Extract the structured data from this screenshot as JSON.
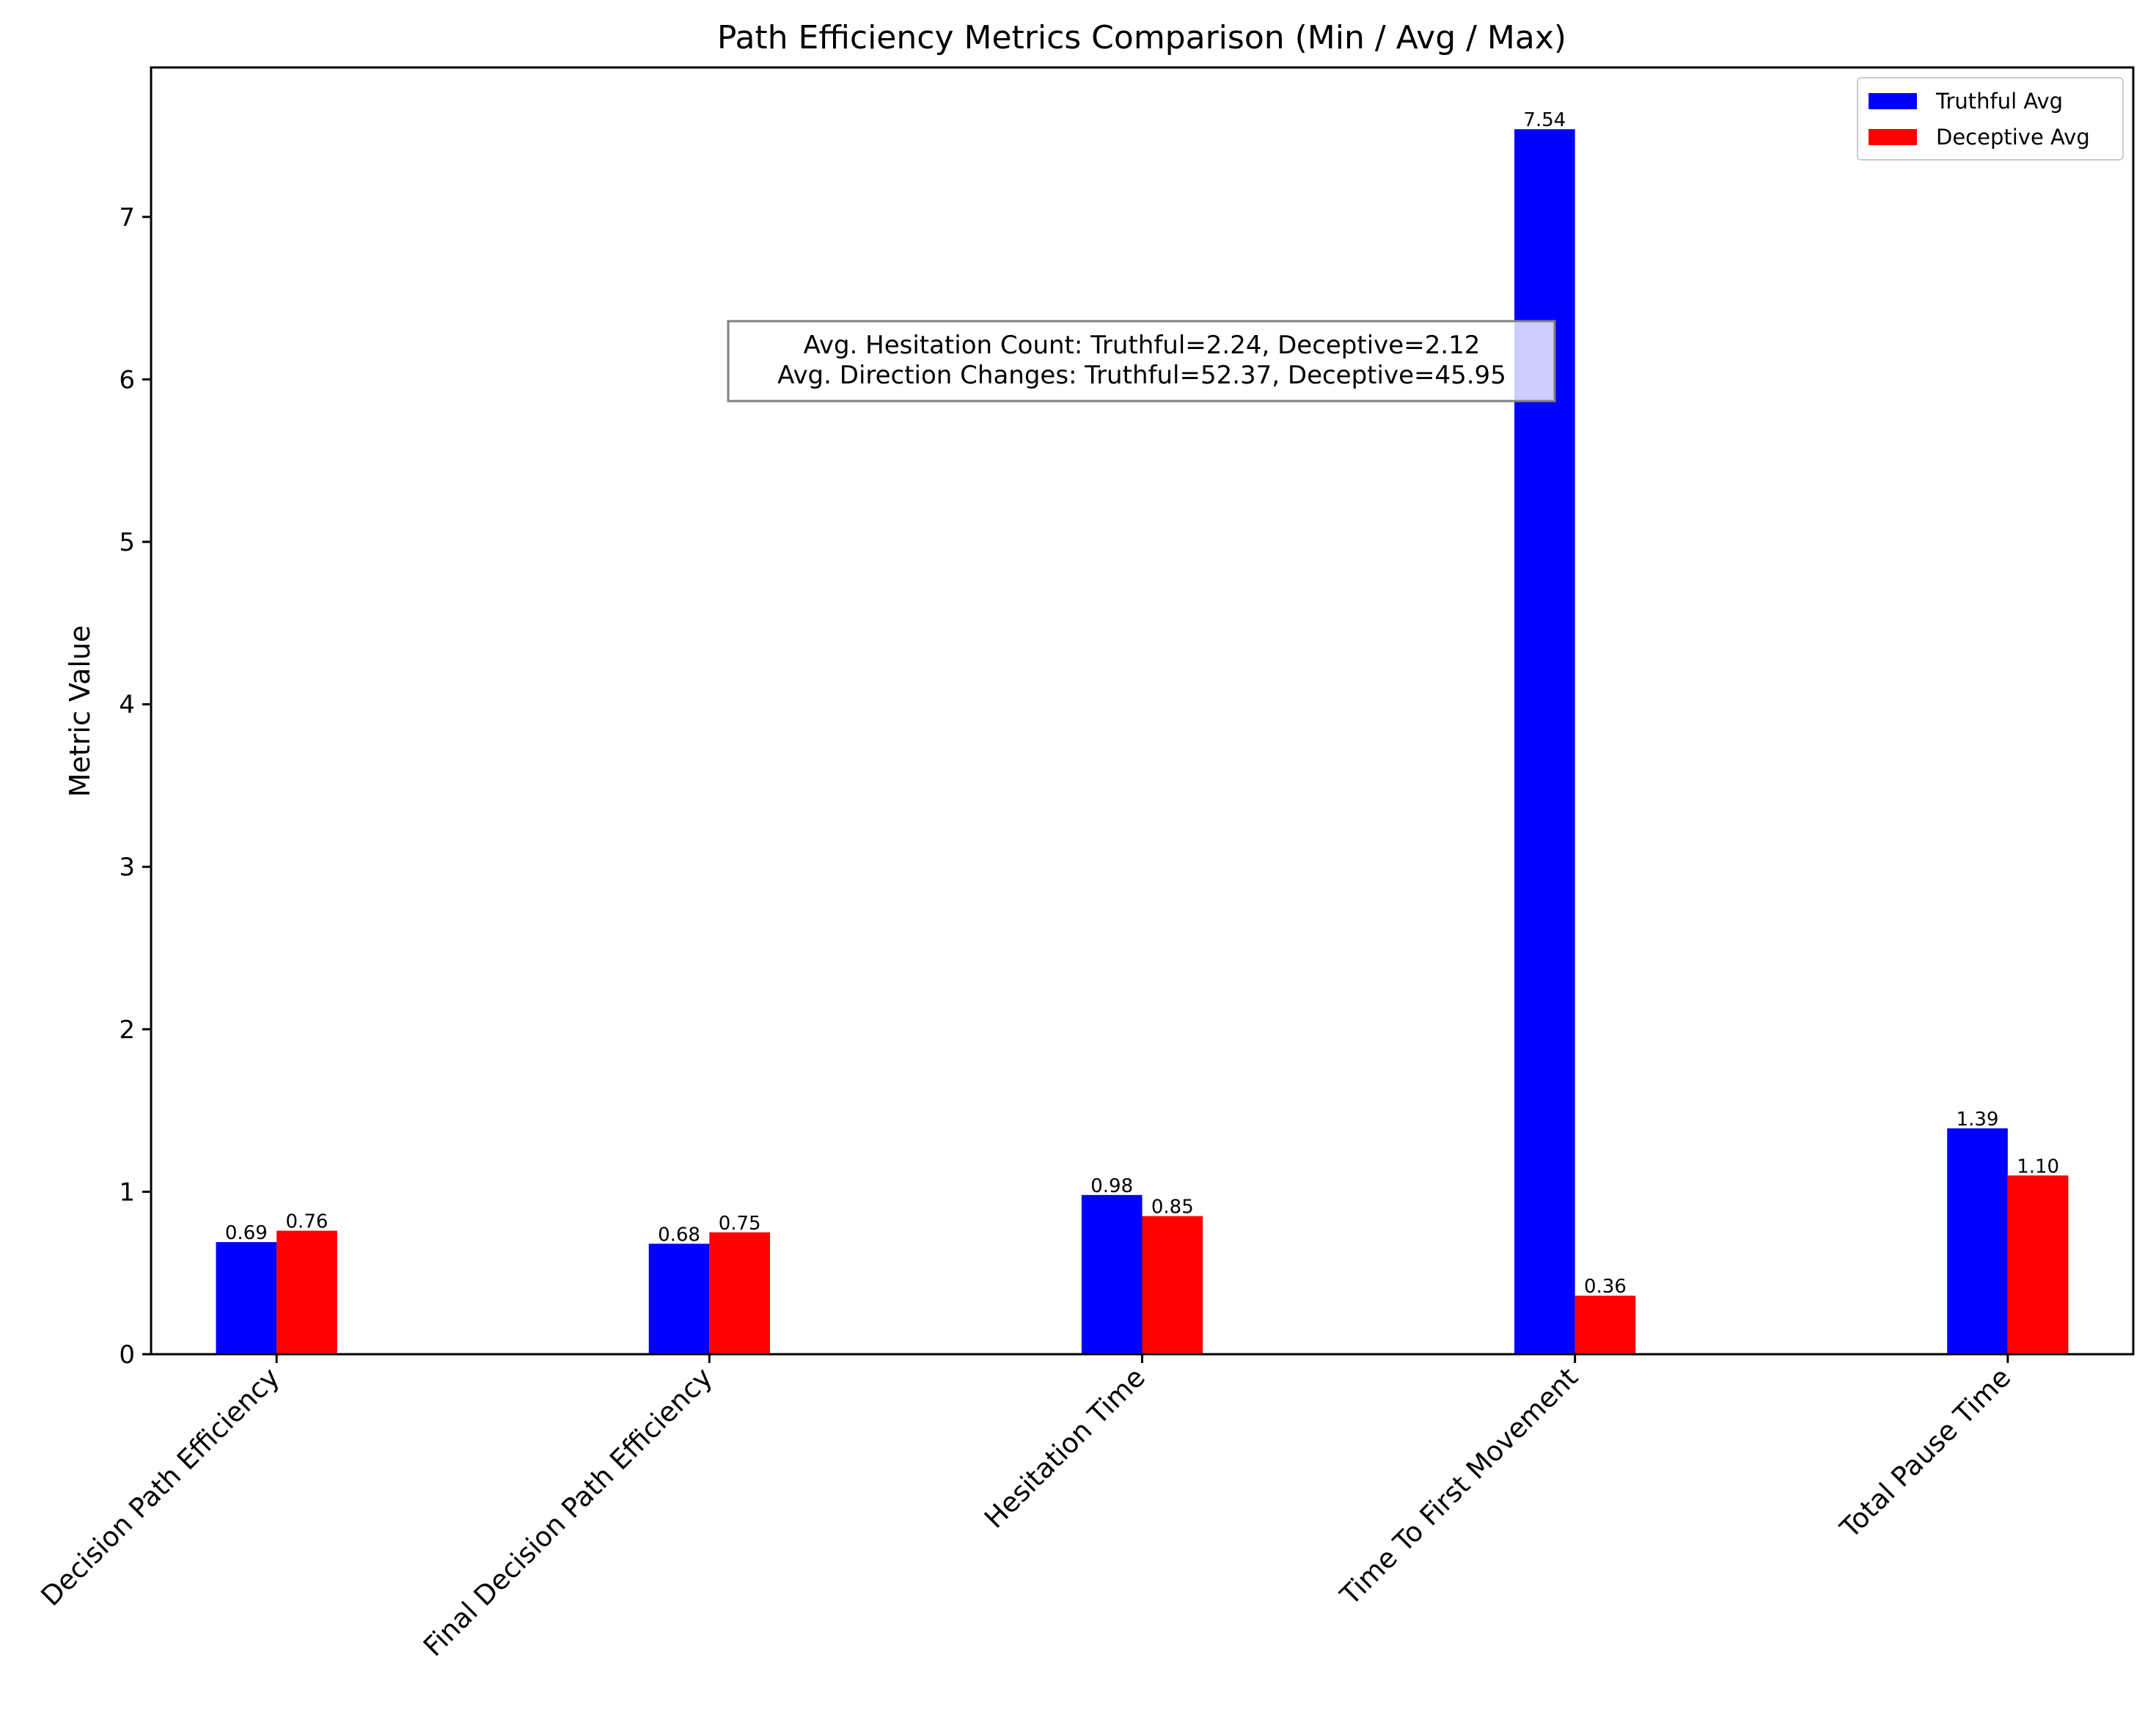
{
  "chart_data": {
    "type": "bar",
    "title": "Path Efficiency Metrics Comparison (Min / Avg / Max)",
    "xlabel": "",
    "ylabel": "Metric Value",
    "ylim": [
      0,
      7.92
    ],
    "yticks": [
      0,
      1,
      2,
      3,
      4,
      5,
      6,
      7
    ],
    "grid": false,
    "legend_position": "top-right",
    "categories": [
      "Decision Path Efficiency",
      "Final Decision Path Efficiency",
      "Hesitation Time",
      "Time To First Movement",
      "Total Pause Time"
    ],
    "series": [
      {
        "name": "Truthful Avg",
        "color": "#0000ff",
        "values": [
          0.69,
          0.68,
          0.98,
          7.54,
          1.39
        ],
        "labels": [
          "0.69",
          "0.68",
          "0.98",
          "7.54",
          "1.39"
        ]
      },
      {
        "name": "Deceptive Avg",
        "color": "#ff0000",
        "values": [
          0.76,
          0.75,
          0.85,
          0.36,
          1.1
        ],
        "labels": [
          "0.76",
          "0.75",
          "0.85",
          "0.36",
          "1.10"
        ]
      }
    ],
    "annotation": {
      "lines": [
        "Avg. Hesitation Count: Truthful=2.24, Deceptive=2.12",
        "Avg. Direction Changes: Truthful=52.37, Deceptive=45.95"
      ]
    }
  }
}
